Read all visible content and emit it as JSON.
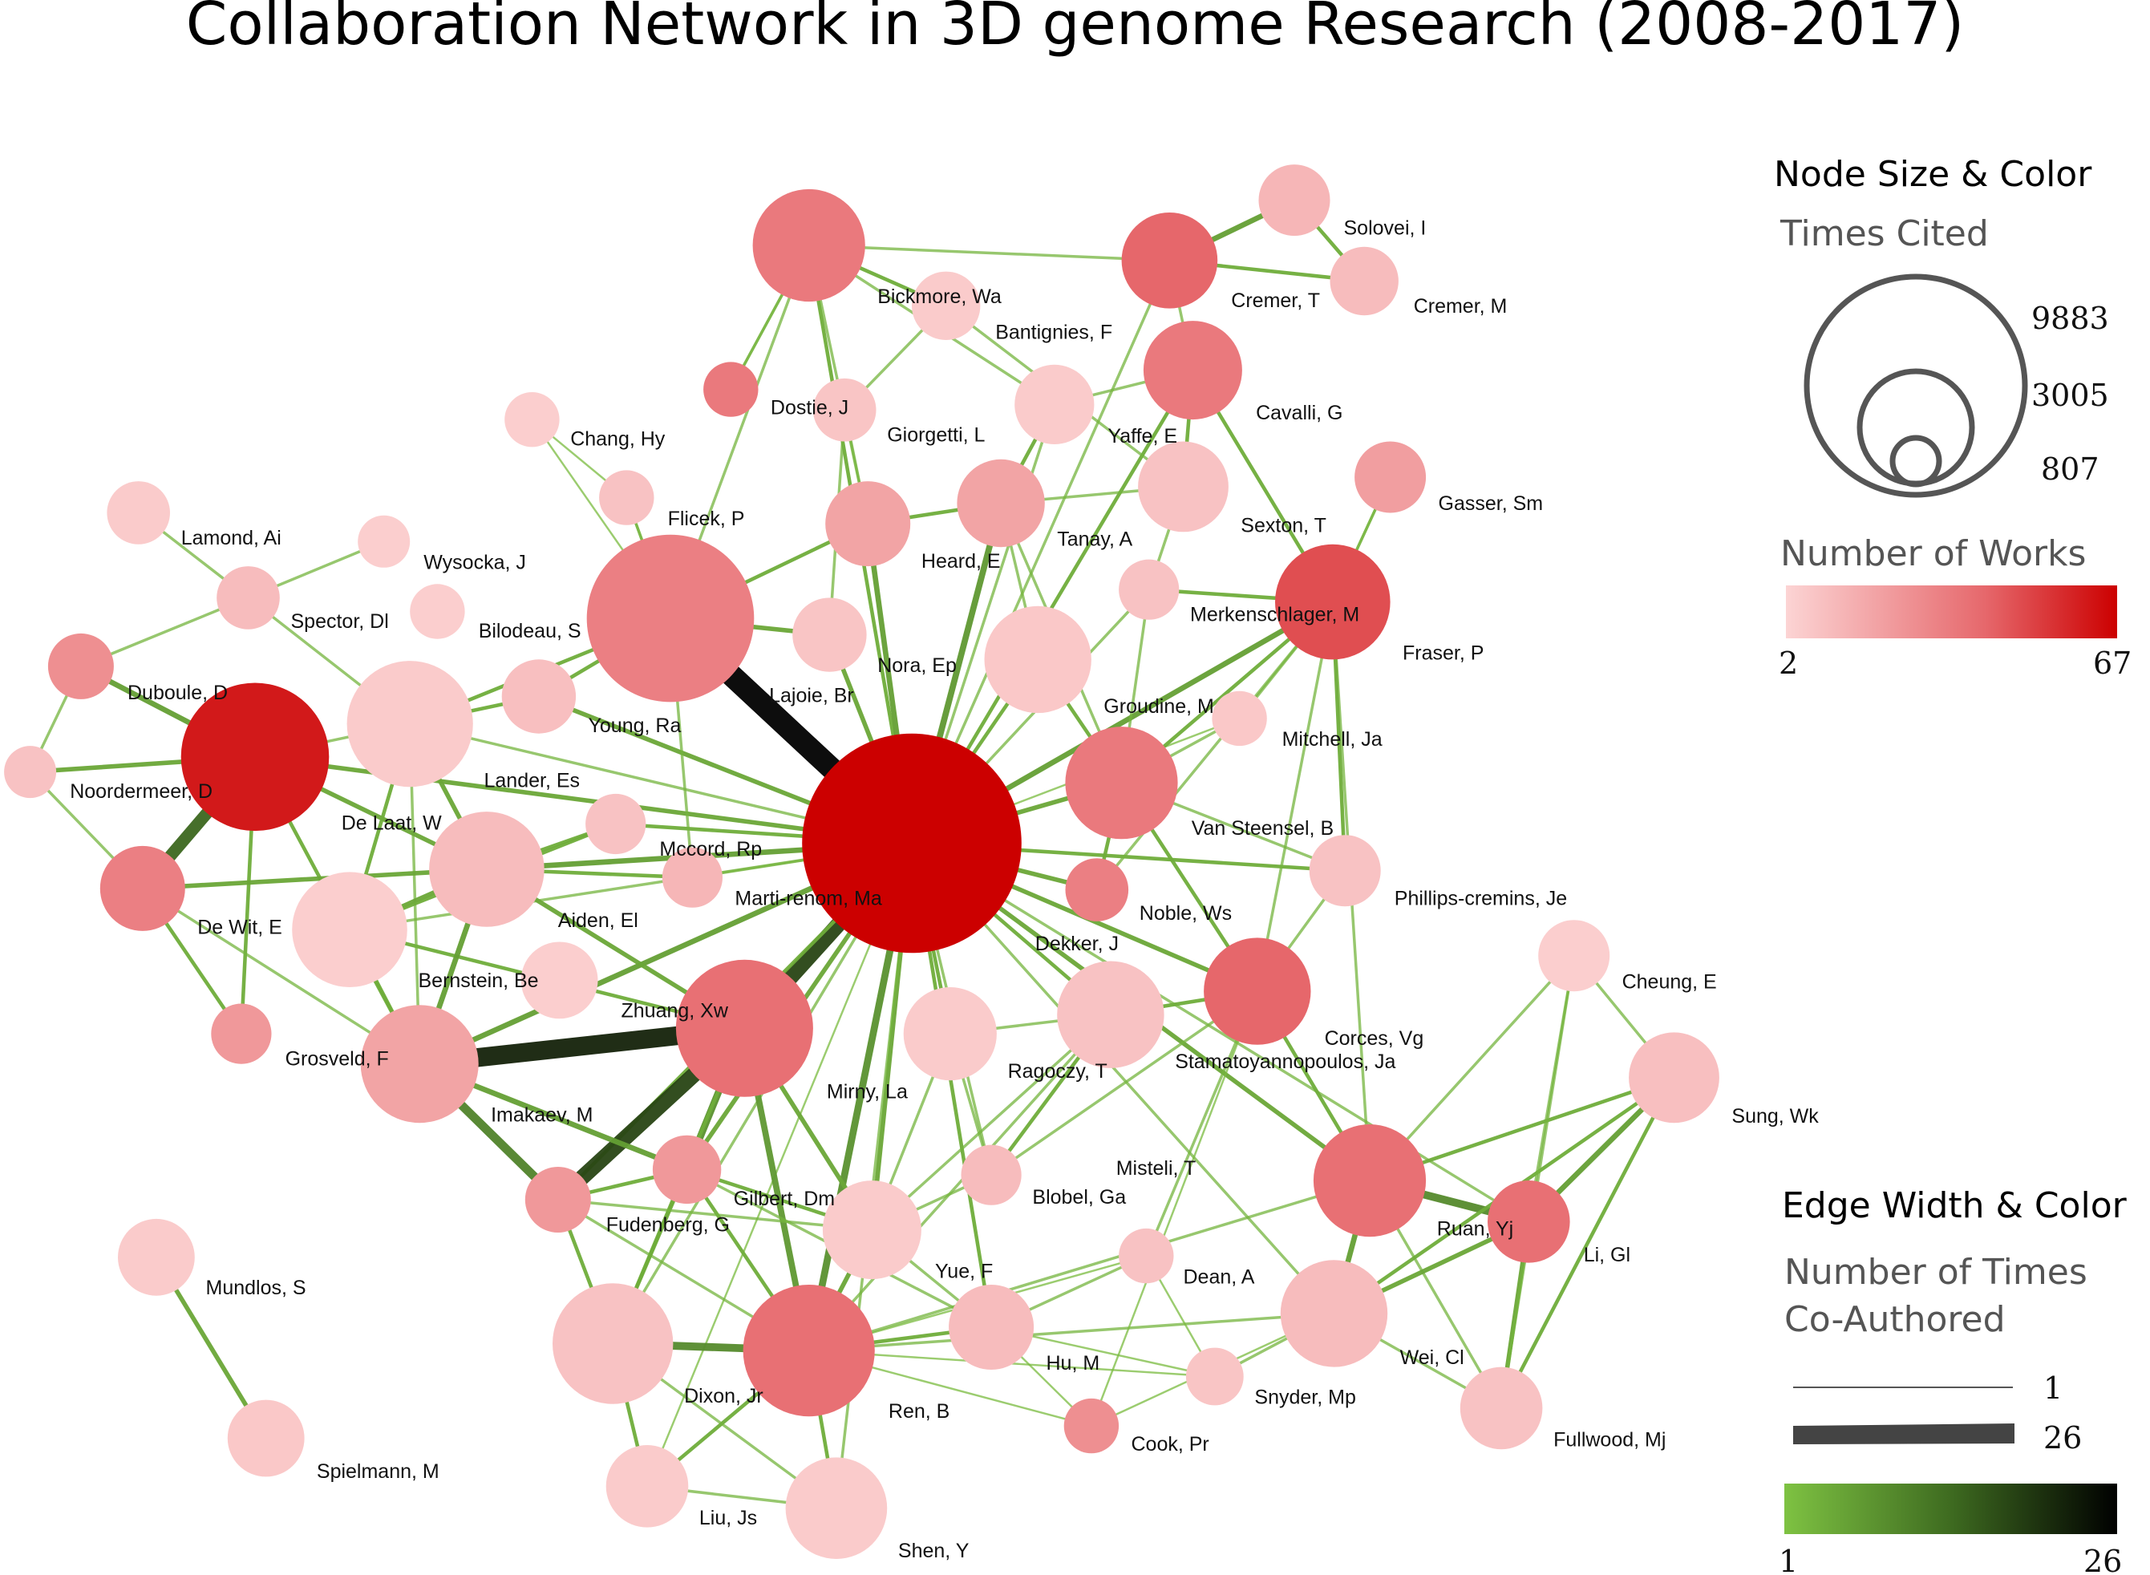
{
  "title": "Collaboration Network in 3D genome Research (2008-2017)",
  "legend": {
    "size_heading": "Node Size & Color",
    "size_sub": "Times Cited",
    "size_values": [
      "9883",
      "3005",
      "807"
    ],
    "works_sub": "Number of Works",
    "works_min": "2",
    "works_max": "67",
    "works_colors": [
      "#fcd4d4",
      "#cc0000"
    ],
    "edge_heading": "Edge Width & Color",
    "edge_sub_1": "Number of Times",
    "edge_sub_2": "Co-Authored",
    "edge_values": [
      "1",
      "26"
    ],
    "edge_min": "1",
    "edge_max": "26",
    "edge_colors": [
      "#7ec242",
      "#000000"
    ]
  },
  "nodes": [
    {
      "id": "marti",
      "label": "Marti-renom, Ma",
      "cited": 9883,
      "works": 67
    },
    {
      "id": "dekker",
      "label": "Dekker, J",
      "cited": 1200,
      "works": 40
    },
    {
      "id": "bilodeau",
      "label": "Bilodeau, S",
      "cited": 6000,
      "works": 30
    },
    {
      "id": "delaat",
      "label": "De Laat, W",
      "cited": 3200,
      "works": 60
    },
    {
      "id": "mirny",
      "label": "Mirny, La",
      "cited": 4100,
      "works": 35
    },
    {
      "id": "dixon",
      "label": "Dixon, Jr",
      "cited": 3800,
      "works": 35
    },
    {
      "id": "bickmore",
      "label": "Bickmore, Wa",
      "cited": 2800,
      "works": 32
    },
    {
      "id": "cremert",
      "label": "Cremer, T",
      "cited": 2100,
      "works": 38
    },
    {
      "id": "cavalli",
      "label": "Cavalli, G",
      "cited": 2100,
      "works": 32
    },
    {
      "id": "merkenschlager",
      "label": "Merkenschlager, M",
      "cited": 2900,
      "works": 45
    },
    {
      "id": "groudine",
      "label": "Groudine, M",
      "cited": 2900,
      "works": 32
    },
    {
      "id": "corces",
      "label": "Corces, Vg",
      "cited": 2600,
      "works": 38
    },
    {
      "id": "misteli",
      "label": "Misteli, T",
      "cited": 2800,
      "works": 35
    },
    {
      "id": "dewit",
      "label": "De Wit, E",
      "cited": 1600,
      "works": 30
    },
    {
      "id": "landeres",
      "label": "Lander, Es",
      "cited": 3400,
      "works": 5
    },
    {
      "id": "bernstein",
      "label": "Bernstein, Be",
      "cited": 2900,
      "works": 4
    },
    {
      "id": "aiden",
      "label": "Aiden, El",
      "cited": 3000,
      "works": 10
    },
    {
      "id": "grosveld",
      "label": "Grosveld, F",
      "cited": 3200,
      "works": 18
    },
    {
      "id": "ren",
      "label": "Ren, B",
      "cited": 3000,
      "works": 8
    },
    {
      "id": "heard",
      "label": "Heard, E",
      "cited": 1600,
      "works": 18
    },
    {
      "id": "tanay",
      "label": "Tanay, A",
      "cited": 1700,
      "works": 16
    },
    {
      "id": "yaffe",
      "label": "Yaffe, E",
      "cited": 1800,
      "works": 8
    },
    {
      "id": "nora",
      "label": "Nora, Ep",
      "cited": 2700,
      "works": 7
    },
    {
      "id": "lajoie",
      "label": "Lajoie, Br",
      "cited": 1200,
      "works": 8
    },
    {
      "id": "youngra",
      "label": "Young, Ra",
      "cited": 1200,
      "works": 9
    },
    {
      "id": "stamatoyannopoulos",
      "label": "Stamatoyannopoulos, Ja",
      "cited": 2600,
      "works": 10
    },
    {
      "id": "ragoczy",
      "label": "Ragoczy, T",
      "cited": 1800,
      "works": 5
    },
    {
      "id": "zhuang",
      "label": "Zhuang, Xw",
      "cited": 1400,
      "works": 10
    },
    {
      "id": "imakaev",
      "label": "Imakaev, M",
      "cited": 1000,
      "works": 22
    },
    {
      "id": "fudenberg",
      "label": "Fudenberg, G",
      "cited": 1200,
      "works": 22
    },
    {
      "id": "gilbert",
      "label": "Gilbert, Dm",
      "cited": 2100,
      "works": 6
    },
    {
      "id": "blobel",
      "label": "Blobel, Ga",
      "cited": 800,
      "works": 12
    },
    {
      "id": "dean",
      "label": "Dean, A",
      "cited": 700,
      "works": 8
    },
    {
      "id": "yue",
      "label": "Yue, F",
      "cited": 1600,
      "works": 10
    },
    {
      "id": "hu",
      "label": "Hu, M",
      "cited": 2300,
      "works": 6
    },
    {
      "id": "shen",
      "label": "Shen, Y",
      "cited": 2100,
      "works": 5
    },
    {
      "id": "liujs",
      "label": "Liu, Js",
      "cited": 1400,
      "works": 5
    },
    {
      "id": "snyder",
      "label": "Snyder, Mp",
      "cited": 650,
      "works": 7
    },
    {
      "id": "cook",
      "label": "Cook, Pr",
      "cited": 700,
      "works": 25
    },
    {
      "id": "wei",
      "label": "Wei, Cl",
      "cited": 2300,
      "works": 10
    },
    {
      "id": "fullwood",
      "label": "Fullwood, Mj",
      "cited": 1300,
      "works": 8
    },
    {
      "id": "ruan",
      "label": "Ruan, Yj",
      "cited": 1500,
      "works": 35
    },
    {
      "id": "ligl",
      "label": "Li, Gl",
      "cited": 650,
      "works": 8
    },
    {
      "id": "sungwk",
      "label": "Sung, Wk",
      "cited": 1800,
      "works": 9
    },
    {
      "id": "cheung",
      "label": "Cheung, E",
      "cited": 1100,
      "works": 4
    },
    {
      "id": "phillips",
      "label": "Phillips-cremins, Je",
      "cited": 1100,
      "works": 8
    },
    {
      "id": "vansteensel",
      "label": "Van Steensel, B",
      "cited": 1100,
      "works": 30
    },
    {
      "id": "noble",
      "label": "Noble, Ws",
      "cited": 1000,
      "works": 28
    },
    {
      "id": "mitchell",
      "label": "Mitchell, Ja",
      "cited": 600,
      "works": 6
    },
    {
      "id": "fraser",
      "label": "Fraser, P",
      "cited": 2800,
      "works": 45
    },
    {
      "id": "sexton",
      "label": "Sexton, T",
      "cited": 800,
      "works": 8
    },
    {
      "id": "gasser",
      "label": "Gasser, Sm",
      "cited": 1100,
      "works": 20
    },
    {
      "id": "solovei",
      "label": "Solovei, I",
      "cited": 1100,
      "works": 12
    },
    {
      "id": "cremerm",
      "label": "Cremer, M",
      "cited": 1100,
      "works": 10
    },
    {
      "id": "giorgetti",
      "label": "Giorgetti, L",
      "cited": 600,
      "works": 7
    },
    {
      "id": "bantignies",
      "label": "Bantignies, F",
      "cited": 1100,
      "works": 5
    },
    {
      "id": "dostie",
      "label": "Dostie, J",
      "cited": 700,
      "works": 32
    },
    {
      "id": "chang",
      "label": "Chang, Hy",
      "cited": 500,
      "works": 4
    },
    {
      "id": "flicek",
      "label": "Flicek, P",
      "cited": 550,
      "works": 8
    },
    {
      "id": "lamond",
      "label": "Lamond, Ai",
      "cited": 800,
      "works": 5
    },
    {
      "id": "wysocka",
      "label": "Wysocka, J",
      "cited": 450,
      "works": 4
    },
    {
      "id": "spector",
      "label": "Spector, Dl",
      "cited": 800,
      "works": 10
    },
    {
      "id": "duboule",
      "label": "Duboule, D",
      "cited": 900,
      "works": 25
    },
    {
      "id": "noordermeer",
      "label": "Noordermeer, D",
      "cited": 500,
      "works": 8
    },
    {
      "id": "mccord",
      "label": "Mccord, Rp",
      "cited": 800,
      "works": 12
    },
    {
      "id": "mundlos",
      "label": "Mundlos, S",
      "cited": 1200,
      "works": 5
    },
    {
      "id": "spielmann",
      "label": "Spielmann, M",
      "cited": 1200,
      "works": 6
    },
    {
      "id": "thirdgrosveld",
      "label": "",
      "cited": 1000,
      "works": 22
    }
  ]
}
